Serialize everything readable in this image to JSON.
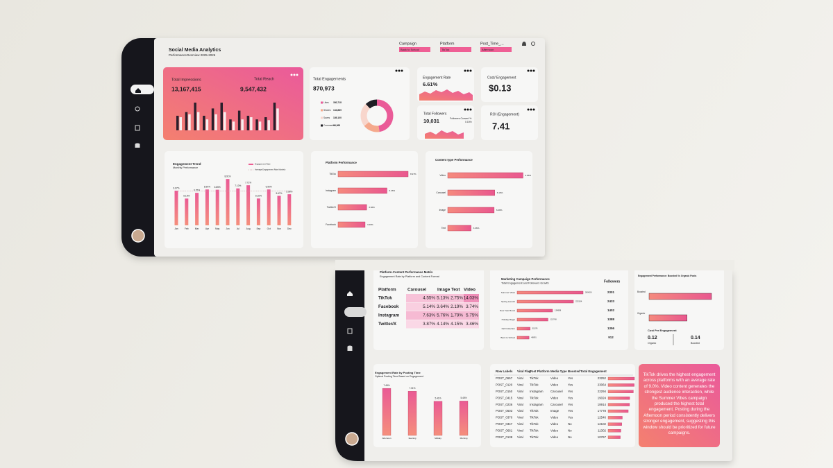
{
  "header": {
    "title": "Social Media Analytics",
    "subtitle": "PerformanceOverview 2025-2026"
  },
  "filters": [
    {
      "label": "Campaign",
      "value": "Back to School"
    },
    {
      "label": "Platform",
      "value": "TikTok"
    },
    {
      "label": "Post_Time_...",
      "value": "Afternoon"
    }
  ],
  "kpis": {
    "impressions": {
      "label": "Total Impressions",
      "value": "13,167,415"
    },
    "reach": {
      "label": "Total Reach",
      "value": "9,547,432"
    },
    "engagements": {
      "label": "Total Engagements",
      "value": "870,973"
    },
    "engagement_rate": {
      "label": "Engagement Rate",
      "value": "6.61%"
    },
    "cost": {
      "label": "Cost/ Engagement",
      "value": "$0.13"
    },
    "followers": {
      "label": "Total Followers",
      "value": "10,031",
      "sub_label": "Followers Convert %",
      "sub_value": "0.15%"
    },
    "roi": {
      "label": "ROI (Engagement)",
      "value": "7.41"
    }
  },
  "charts": {
    "impressions_trend": {
      "type": "bar",
      "series": [
        {
          "color": "#2a1f2b",
          "values": [
            600000,
            750000,
            1140000,
            600000,
            900000,
            1140000,
            450000,
            810000,
            600000,
            450000,
            540000,
            1140000
          ]
        },
        {
          "color": "#f7efef",
          "values": [
            540000,
            660000,
            750000,
            450000,
            660000,
            750000,
            360000,
            450000,
            540000,
            360000,
            420000,
            900000
          ]
        }
      ]
    },
    "engagement_breakdown": {
      "type": "pie",
      "categories": [
        "Likes",
        "Shares",
        "Saves",
        "Comments"
      ],
      "values": [
        380718,
        134889,
        189100,
        98368
      ],
      "value_labels": [
        "380,718",
        "134,889",
        "189,100",
        "98,368"
      ],
      "colors": [
        "#ea5b98",
        "#f5a98c",
        "#f8d6cc",
        "#1e1e24"
      ]
    },
    "engagement_trend": {
      "type": "bar",
      "title": "Engagement Trend",
      "subtitle": "Monthly Performance",
      "color": "#ec5e93",
      "categories": [
        "Jan",
        "Feb",
        "Mar",
        "Apr",
        "May",
        "Jun",
        "Jul",
        "Aug",
        "Sep",
        "Oct",
        "Nov",
        "Dec"
      ],
      "series": [
        {
          "name": "Engagement Rate",
          "color": "#ec5e93",
          "values": [
            6.67,
            5.15,
            6.25,
            6.9,
            6.85,
            8.91,
            7.1,
            7.71,
            5.16,
            6.9,
            5.67,
            5.98
          ],
          "value_labels": [
            "6.67%",
            "5.15%",
            "6.25%",
            "6.90%",
            "6.85%",
            "8.91%",
            "7.10%",
            "7.71%",
            "5.16%",
            "6.90%",
            "5.67%",
            "5.98%"
          ]
        },
        {
          "name": "Average Engagement Rate Monthly",
          "color": "#c9a0a8",
          "values": [
            6.61,
            6.61,
            6.61,
            6.61,
            6.61,
            6.61,
            6.61,
            6.61,
            6.61,
            6.61,
            6.61,
            6.61
          ]
        }
      ]
    },
    "platform_performance": {
      "type": "bar",
      "title": "Platform Performance",
      "categories": [
        "TikTok",
        "Instagram",
        "Twitter/X",
        "Facebook"
      ],
      "values": [
        8.97,
        6.26,
        3.66,
        3.46
      ],
      "value_labels": [
        "8.97%",
        "6.26%",
        "3.66%",
        "3.46%"
      ]
    },
    "content_performance": {
      "type": "bar",
      "title": "Content type Performance",
      "categories": [
        "Video",
        "Carousel",
        "Image",
        "Text"
      ],
      "values": [
        9.86,
        6.16,
        6.08,
        3.06
      ],
      "value_labels": [
        "9.86%",
        "6.16%",
        "6.08%",
        "3.06%"
      ]
    },
    "campaign_performance": {
      "type": "bar",
      "title": "Marketing Campaign Performance",
      "subtitle": "Total Engagement and Followers Growth",
      "followers_label": "Followers",
      "categories": [
        "Summer Vibes",
        "Spring Launch",
        "New Year Boost",
        "Holiday Magic",
        "Fall Collection",
        "Back to School"
      ],
      "values": [
        260428,
        222104,
        139658,
        121768,
        51078,
        46891
      ],
      "followers": [
        2301,
        2433,
        1402,
        1388,
        1356,
        912
      ]
    },
    "boosted_vs_organic": {
      "type": "bar",
      "title": "Engagement Performance: Boosted Vs Organic Posts",
      "categories": [
        "Boosted",
        "Organic"
      ],
      "values": [
        460000,
        280000
      ],
      "cost_title": "Cost Per Engagement",
      "cost": [
        {
          "value": "0.12",
          "label": "Organic"
        },
        {
          "value": "0.14",
          "label": "Boosted"
        }
      ]
    },
    "posting_time": {
      "type": "bar",
      "title": "Engagement Rate by Posting Time",
      "subtitle": "Optimal Posting Time Based on Engagement",
      "categories": [
        "Afternoon",
        "Evening",
        "Midday",
        "Morning"
      ],
      "values": [
        7.46,
        7.01,
        5.41,
        5.45
      ],
      "value_labels": [
        "7.46%",
        "7.01%",
        "5.41%",
        "5.45%"
      ]
    }
  },
  "matrix": {
    "title": "Platform-Content Performance Matrix",
    "subtitle": "Engagement Rate by Platform and Content Format",
    "columns": [
      "Platform",
      "Carousel",
      "Image",
      "Text",
      "Video"
    ],
    "rows": [
      [
        "TikTok",
        "4.55%",
        "5.13%",
        "2.75%",
        "14.03%"
      ],
      [
        "Facebook",
        "5.14%",
        "3.64%",
        "2.19%",
        "3.74%"
      ],
      [
        "Instagram",
        "7.63%",
        "5.76%",
        "1.79%",
        "5.75%"
      ],
      [
        "Twitter/X",
        "3.87%",
        "4.14%",
        "4.15%",
        "3.46%"
      ]
    ]
  },
  "table": {
    "columns": [
      "Row Labels",
      "Viral Flag",
      "Post Platform",
      "Media Type",
      "Boosted",
      "Total Engagement"
    ],
    "rows": [
      [
        "POST_0657",
        "Viral",
        "TikTok",
        "Video",
        "Yes",
        23252
      ],
      [
        "POST_0120",
        "Viral",
        "TikTok",
        "Video",
        "Yes",
        23064
      ],
      [
        "POST_0150",
        "Viral",
        "Instagram",
        "Carousel",
        "Yes",
        22294
      ],
      [
        "POST_0415",
        "Viral",
        "TikTok",
        "Video",
        "Yes",
        19024
      ],
      [
        "POST_0236",
        "Viral",
        "Instagram",
        "Carousel",
        "Yes",
        18914
      ],
      [
        "POST_0603",
        "Viral",
        "TikTok",
        "Image",
        "Yes",
        17778
      ],
      [
        "POST_0370",
        "Viral",
        "TikTok",
        "Video",
        "Yes",
        12546
      ],
      [
        "POST_0347",
        "Viral",
        "TikTok",
        "Video",
        "No",
        12102
      ],
      [
        "POST_0661",
        "Viral",
        "TikTok",
        "Video",
        "No",
        11302
      ],
      [
        "POST_0138",
        "Viral",
        "TikTok",
        "Video",
        "No",
        10767
      ]
    ]
  },
  "insight": "TikTok drives the highest engagement across platforms with an average rate of 9.0%. Video content generates the strongest audience interaction, while the Summer Vibes campaign produced the highest total engagement. Posting during the Afternoon period consistently delivers stronger engagement, suggesting this window should be prioritized for future campaigns."
}
